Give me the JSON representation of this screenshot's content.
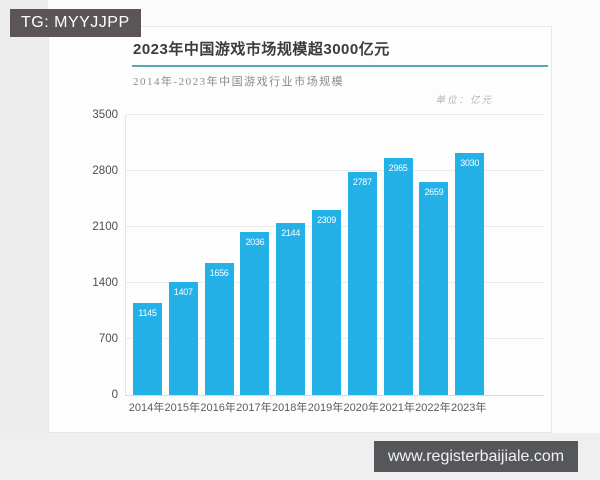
{
  "watermarks": {
    "top_banner": {
      "text": "TG: MYYJJPP",
      "bg_color": "#5b5555"
    },
    "bottom_banner": {
      "text": "www.registerbaijiale.com",
      "bg_color": "#55575a"
    }
  },
  "chart_data": {
    "type": "bar",
    "title": "2023年中国游戏市场规模超3000亿元",
    "subtitle": "2014年-2023年中国游戏行业市场规模",
    "unit_label": "单位：亿元",
    "categories": [
      "2014年",
      "2015年",
      "2016年",
      "2017年",
      "2018年",
      "2019年",
      "2020年",
      "2021年",
      "2022年",
      "2023年"
    ],
    "values": [
      1145,
      1407,
      1656,
      2036,
      2144,
      2309,
      2787,
      2965,
      2659,
      3030
    ],
    "y_ticks": [
      0,
      700,
      1400,
      2100,
      2800,
      3500
    ],
    "ylim": [
      0,
      3500
    ],
    "grid": true,
    "legend": false,
    "value_labels_position": "inside-top",
    "bar_color": "#23b1e8",
    "title_rule_color": "#5aa7b8",
    "xlabel": "",
    "ylabel": ""
  }
}
